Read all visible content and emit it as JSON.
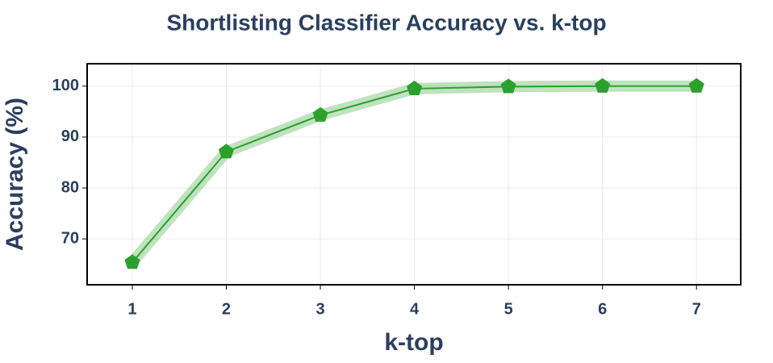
{
  "chart_data": {
    "type": "line",
    "title": "Shortlisting Classifier Accuracy vs. k-top",
    "x_label": "k-top",
    "y_label": "Accuracy (%)",
    "x": [
      1,
      2,
      3,
      4,
      5,
      6,
      7
    ],
    "series": [
      {
        "color": "#2ca02c",
        "values": [
          65.4,
          87.1,
          94.3,
          99.5,
          99.9,
          100.0,
          100.0
        ]
      }
    ],
    "xlim": [
      0.52,
      7.47
    ],
    "xticks": [
      1,
      2,
      3,
      4,
      5,
      6,
      7
    ],
    "ylim": [
      61,
      104.4
    ],
    "yticks": [
      70,
      80,
      90,
      100
    ],
    "grid": true
  }
}
